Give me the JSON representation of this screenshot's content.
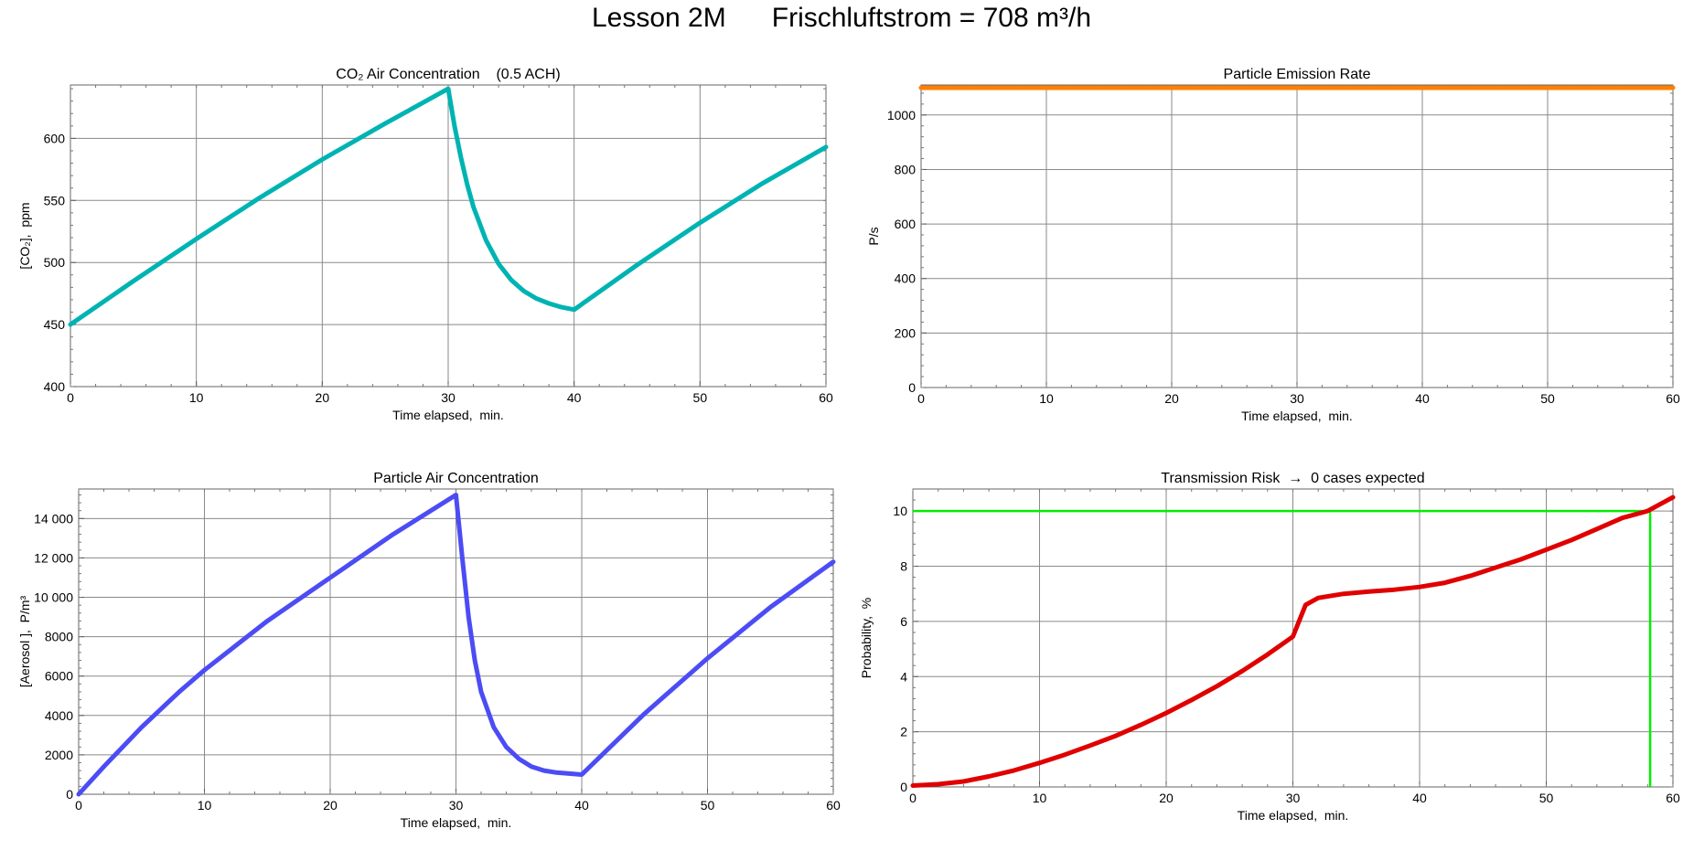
{
  "page": {
    "title_lesson": "Lesson 2M",
    "title_flow": "Frischluftstrom = 708 m³/h"
  },
  "colors": {
    "co2": "#00b3b3",
    "emission": "#ff7f00",
    "aerosol": "#4c4cf5",
    "risk": "#e00000",
    "threshold": "#00ee00",
    "grid": "#8a8a8a"
  },
  "chart_data": [
    {
      "id": "co2",
      "type": "line",
      "title": "CO₂ Air Concentration    (0.5 ACH)",
      "xlabel": "Time elapsed,  min.",
      "ylabel": "[CO₂],  ppm",
      "xlim": [
        0,
        60
      ],
      "ylim": [
        400,
        643
      ],
      "xticks": [
        "0",
        "10",
        "20",
        "30",
        "40",
        "50",
        "60"
      ],
      "yticks": [
        "400",
        "450",
        "500",
        "550",
        "600"
      ],
      "grid": true,
      "series": [
        {
          "x": [
            0,
            5,
            10,
            15,
            20,
            25,
            30,
            30.5,
            31,
            31.5,
            32,
            33,
            34,
            35,
            36,
            37,
            38,
            39,
            40,
            45,
            50,
            55,
            60
          ],
          "y": [
            450,
            485,
            519,
            552,
            583,
            612,
            640,
            610,
            585,
            563,
            545,
            518,
            499,
            486,
            477,
            471,
            467,
            464,
            462,
            498,
            532,
            564,
            593
          ]
        }
      ]
    },
    {
      "id": "emission",
      "type": "line",
      "title": "Particle Emission Rate",
      "xlabel": "Time elapsed,  min.",
      "ylabel": "P/s",
      "xlim": [
        0,
        60
      ],
      "ylim": [
        0,
        1110
      ],
      "xticks": [
        "0",
        "10",
        "20",
        "30",
        "40",
        "50",
        "60"
      ],
      "yticks": [
        "0",
        "200",
        "400",
        "600",
        "800",
        "1000"
      ],
      "grid": true,
      "series": [
        {
          "x": [
            0,
            60
          ],
          "y": [
            1100,
            1100
          ]
        }
      ]
    },
    {
      "id": "aerosol",
      "type": "line",
      "title": "Particle Air Concentration",
      "xlabel": "Time elapsed,  min.",
      "ylabel": "[Aerosol ],  P/m³",
      "xlim": [
        0,
        60
      ],
      "ylim": [
        0,
        15500
      ],
      "xticks": [
        "0",
        "10",
        "20",
        "30",
        "40",
        "50",
        "60"
      ],
      "yticks": [
        "0",
        "2000",
        "4000",
        "6000",
        "8000",
        "10 000",
        "12 000",
        "14 000"
      ],
      "grid": true,
      "series": [
        {
          "x": [
            0,
            2,
            5,
            8,
            10,
            15,
            20,
            25,
            30,
            30.5,
            31,
            31.5,
            32,
            33,
            34,
            35,
            36,
            37,
            38,
            39,
            40,
            45,
            50,
            55,
            60
          ],
          "y": [
            0,
            1400,
            3400,
            5200,
            6300,
            8800,
            11000,
            13200,
            15200,
            12000,
            9000,
            6800,
            5200,
            3400,
            2400,
            1800,
            1400,
            1200,
            1100,
            1050,
            1000,
            4100,
            6900,
            9500,
            11800
          ]
        }
      ]
    },
    {
      "id": "risk",
      "type": "line",
      "title": "Transmission Risk  →  0 cases expected",
      "xlabel": "Time elapsed,  min.",
      "ylabel": "Probability,  %",
      "xlim": [
        0,
        60
      ],
      "ylim": [
        0,
        10.8
      ],
      "xticks": [
        "0",
        "10",
        "20",
        "30",
        "40",
        "50",
        "60"
      ],
      "yticks": [
        "0",
        "2",
        "4",
        "6",
        "8",
        "10"
      ],
      "grid": true,
      "series": [
        {
          "x": [
            0,
            2,
            4,
            6,
            8,
            10,
            12,
            14,
            16,
            18,
            20,
            22,
            24,
            26,
            28,
            30,
            31,
            32,
            34,
            36,
            38,
            40,
            42,
            44,
            46,
            48,
            50,
            52,
            54,
            56,
            58,
            60
          ],
          "y": [
            0.05,
            0.1,
            0.2,
            0.38,
            0.6,
            0.87,
            1.17,
            1.5,
            1.85,
            2.25,
            2.68,
            3.15,
            3.65,
            4.2,
            4.8,
            5.45,
            6.6,
            6.85,
            7.0,
            7.08,
            7.15,
            7.25,
            7.4,
            7.65,
            7.95,
            8.25,
            8.6,
            8.95,
            9.35,
            9.75,
            10.0,
            10.5
          ]
        }
      ],
      "threshold": {
        "y": 10,
        "x": 58.2
      }
    }
  ]
}
